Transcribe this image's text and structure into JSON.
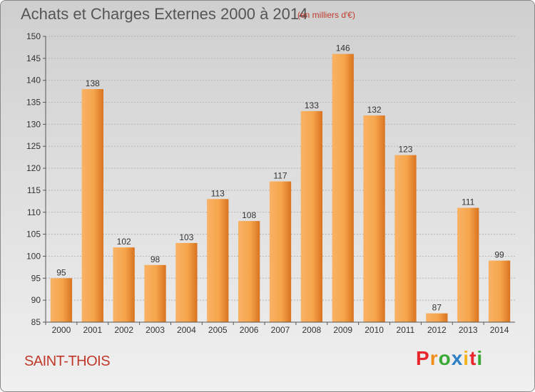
{
  "header": {
    "title": "Achats et Charges Externes 2000 à 2014",
    "subtitle": "(en milliers d'€)"
  },
  "footer": {
    "place": "SAINT-THOIS",
    "logo_letters": [
      "P",
      "r",
      "o",
      "x",
      "i",
      "t",
      "i"
    ],
    "logo_colors": [
      "#e8262b",
      "#f18e1c",
      "#3aa935",
      "#2e7fc4",
      "#f4b21b",
      "#e8262b",
      "#3aa935"
    ]
  },
  "colors": {
    "bar_light": "#f6a54c",
    "bar_dark": "#d9731f"
  },
  "chart_data": {
    "type": "bar",
    "title": "Achats et Charges Externes 2000 à 2014",
    "subtitle": "(en milliers d'€)",
    "categories": [
      "2000",
      "2001",
      "2002",
      "2003",
      "2004",
      "2005",
      "2006",
      "2007",
      "2008",
      "2009",
      "2010",
      "2011",
      "2012",
      "2013",
      "2014"
    ],
    "values": [
      95,
      138,
      102,
      98,
      103,
      113,
      108,
      117,
      133,
      146,
      132,
      123,
      87,
      111,
      99
    ],
    "ylim": [
      85,
      150
    ],
    "yticks": [
      85,
      90,
      95,
      100,
      105,
      110,
      115,
      120,
      125,
      130,
      135,
      140,
      145,
      150
    ],
    "grid": true,
    "legend": "none"
  }
}
